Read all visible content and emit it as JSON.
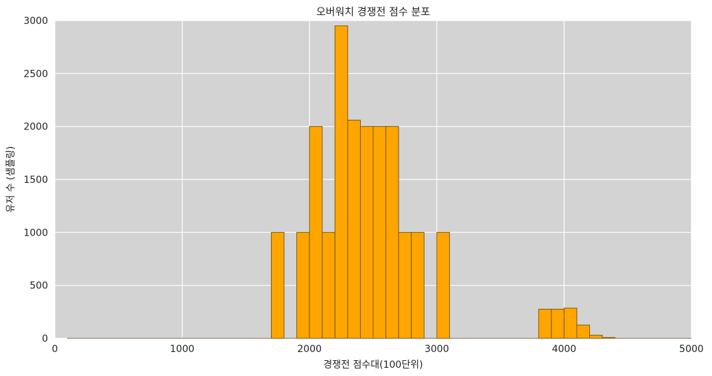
{
  "chart_data": {
    "type": "bar",
    "title": "오버워치 경쟁전 점수 분포",
    "xlabel": "경쟁전 점수대(100단위)",
    "ylabel": "유저 수 (샘플링)",
    "xlim": [
      0,
      5000
    ],
    "ylim": [
      0,
      3000
    ],
    "xticks": [
      "0",
      "1000",
      "2000",
      "3000",
      "4000",
      "5000"
    ],
    "yticks": [
      "0",
      "500",
      "1000",
      "1500",
      "2000",
      "2500",
      "3000"
    ],
    "grid": true,
    "bin_width": 100,
    "x": [
      1700,
      1900,
      2000,
      2100,
      2200,
      2300,
      2400,
      2500,
      2600,
      2700,
      2800,
      3000,
      3800,
      3900,
      4000,
      4100,
      4200,
      4300
    ],
    "values": [
      1000,
      1000,
      2000,
      1000,
      2950,
      2060,
      2000,
      2000,
      2000,
      1000,
      1000,
      1000,
      275,
      275,
      285,
      125,
      30,
      8
    ],
    "bar_color": "#ffa500",
    "bar_edge_color": "#7a5a14",
    "background_color": "#d3d3d3"
  }
}
